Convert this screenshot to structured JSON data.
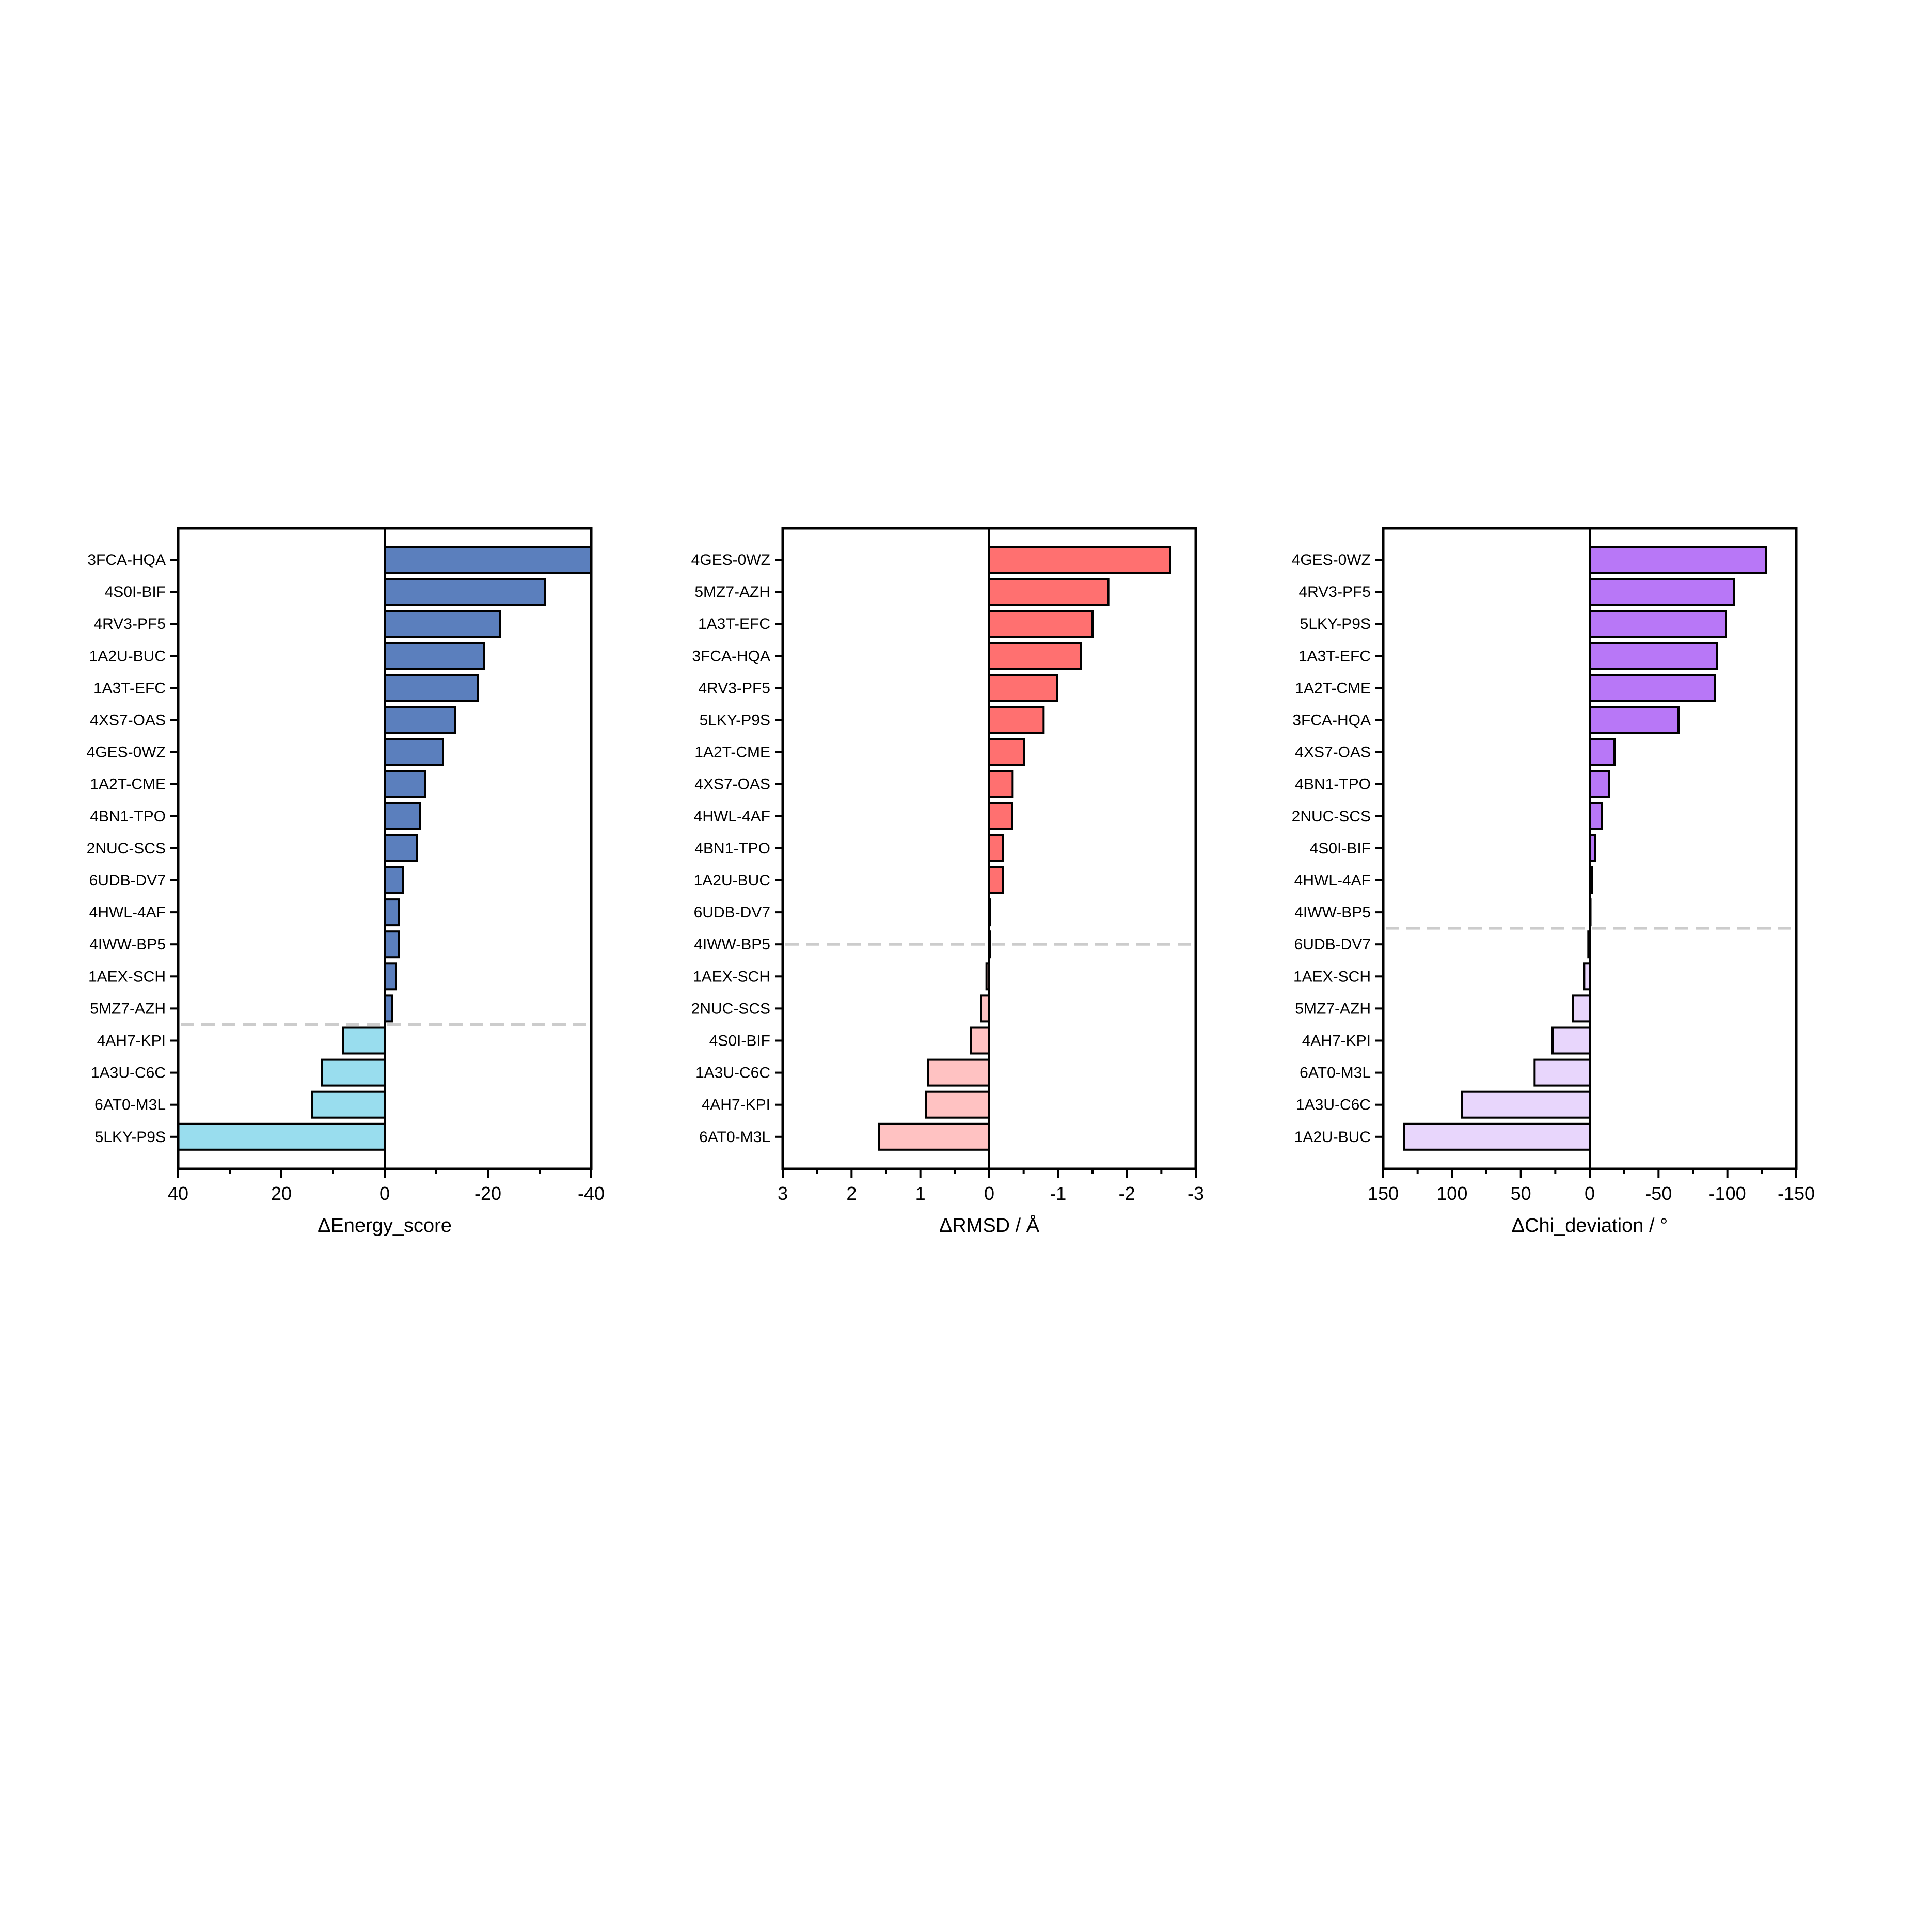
{
  "colors": {
    "energy_positive": "#5B7FBD",
    "energy_negative": "#99DDEE",
    "rmsd_positive": "#FF7070",
    "rmsd_negative": "#FFC2C2",
    "chi_positive": "#B877F7",
    "chi_negative": "#E8D6FC",
    "threshold_line": "#CCCCCC",
    "axis": "#000000"
  },
  "chart_data": [
    {
      "type": "bar",
      "orientation": "horizontal",
      "xlabel": "ΔEnergy_score",
      "xlim": [
        40,
        -40
      ],
      "xticks": [
        40,
        20,
        0,
        -20,
        -40
      ],
      "xtick_labels": [
        "40",
        "20",
        "0",
        "-20",
        "-40"
      ],
      "threshold_line": "dashed line between 5MZ7-AZH and 4AH7-KPI",
      "categories": [
        "3FCA-HQA",
        "4S0I-BIF",
        "4RV3-PF5",
        "1A2U-BUC",
        "1A3T-EFC",
        "4XS7-OAS",
        "4GES-0WZ",
        "1A2T-CME",
        "4BN1-TPO",
        "2NUC-SCS",
        "6UDB-DV7",
        "4HWL-4AF",
        "4IWW-BP5",
        "1AEX-SCH",
        "5MZ7-AZH",
        "4AH7-KPI",
        "1A3U-C6C",
        "6AT0-M3L",
        "5LKY-P9S"
      ],
      "values": [
        -40.0,
        -31.0,
        -22.3,
        -19.3,
        -18.0,
        -13.6,
        -11.3,
        -7.8,
        -6.8,
        -6.3,
        -3.5,
        -2.8,
        -2.8,
        -2.2,
        -1.5,
        8.0,
        12.2,
        14.1,
        40.0
      ]
    },
    {
      "type": "bar",
      "orientation": "horizontal",
      "xlabel": "ΔRMSD / Å",
      "xlim": [
        3,
        -3
      ],
      "xticks": [
        3,
        2,
        1,
        0,
        -1,
        -2,
        -3
      ],
      "xtick_labels": [
        "3",
        "2",
        "1",
        "0",
        "-1",
        "-2",
        "-3"
      ],
      "threshold_line": "dashed line at 4IWW-BP5",
      "categories": [
        "4GES-0WZ",
        "5MZ7-AZH",
        "1A3T-EFC",
        "3FCA-HQA",
        "4RV3-PF5",
        "5LKY-P9S",
        "1A2T-CME",
        "4XS7-OAS",
        "4HWL-4AF",
        "4BN1-TPO",
        "1A2U-BUC",
        "6UDB-DV7",
        "4IWW-BP5",
        "1AEX-SCH",
        "2NUC-SCS",
        "4S0I-BIF",
        "1A3U-C6C",
        "4AH7-KPI",
        "6AT0-M3L"
      ],
      "values": [
        -2.63,
        -1.73,
        -1.5,
        -1.33,
        -0.99,
        -0.79,
        -0.51,
        -0.34,
        -0.33,
        -0.2,
        -0.2,
        -0.01,
        0.0,
        0.04,
        0.12,
        0.27,
        0.89,
        0.92,
        1.6
      ]
    },
    {
      "type": "bar",
      "orientation": "horizontal",
      "xlabel": "ΔChi_deviation / °",
      "xlim": [
        150,
        -150
      ],
      "xticks": [
        150,
        100,
        50,
        0,
        -50,
        -100,
        -150
      ],
      "xtick_labels": [
        "150",
        "100",
        "50",
        "0",
        "-50",
        "-100",
        "-150"
      ],
      "threshold_line": "dashed line between 4IWW-BP5 and 6UDB-DV7",
      "categories": [
        "4GES-0WZ",
        "4RV3-PF5",
        "5LKY-P9S",
        "1A3T-EFC",
        "1A2T-CME",
        "3FCA-HQA",
        "4XS7-OAS",
        "4BN1-TPO",
        "2NUC-SCS",
        "4S0I-BIF",
        "4HWL-4AF",
        "4IWW-BP5",
        "6UDB-DV7",
        "1AEX-SCH",
        "5MZ7-AZH",
        "4AH7-KPI",
        "6AT0-M3L",
        "1A3U-C6C",
        "1A2U-BUC"
      ],
      "values": [
        -128.0,
        -105.0,
        -99.0,
        -92.5,
        -91.0,
        -64.5,
        -18.0,
        -14.0,
        -9.0,
        -4.0,
        -1.5,
        0.0,
        1.0,
        4.0,
        12.0,
        27.0,
        40.0,
        93.0,
        135.0
      ]
    }
  ]
}
